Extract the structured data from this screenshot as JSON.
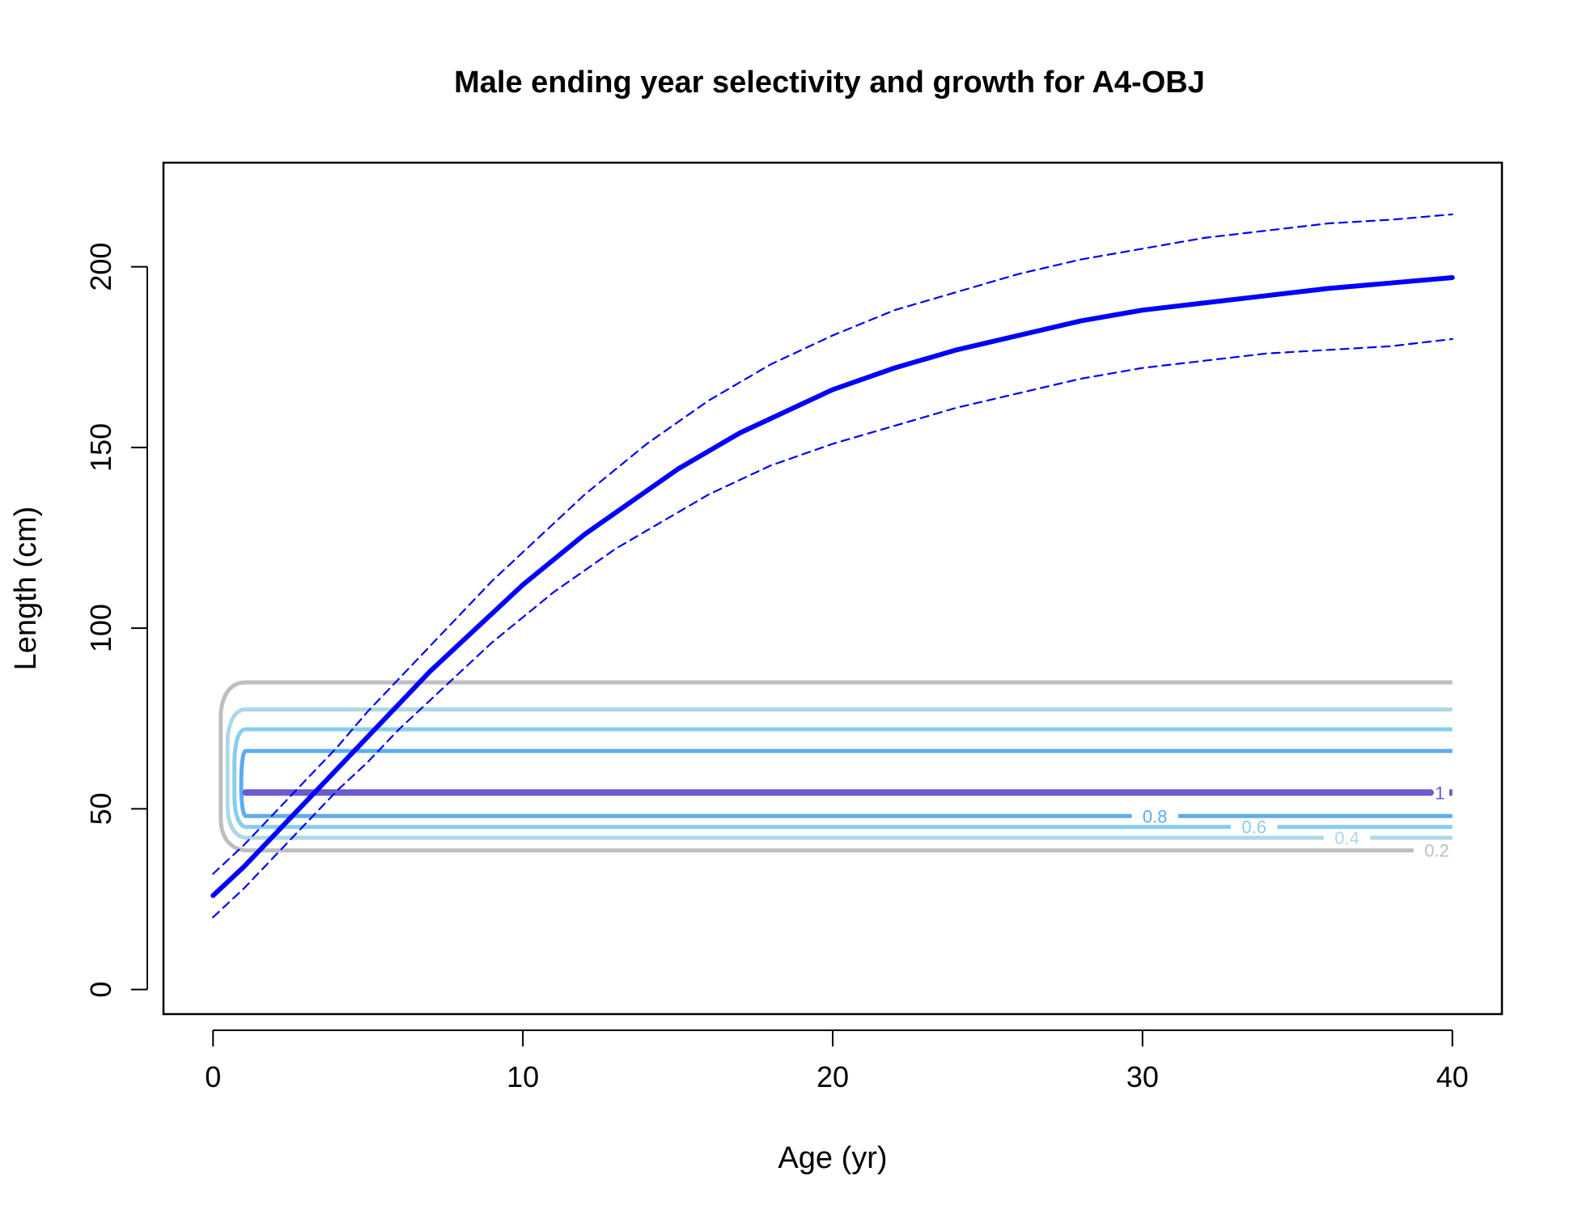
{
  "chart_data": {
    "type": "line",
    "title": "Male ending year selectivity and growth for A4-OBJ",
    "xlabel": "Age (yr)",
    "ylabel": "Length (cm)",
    "xlim": [
      -1.6,
      41.6
    ],
    "ylim": [
      -6.8,
      228.8
    ],
    "x_ticks": [
      0,
      10,
      20,
      30,
      40
    ],
    "y_ticks": [
      0,
      50,
      100,
      150,
      200
    ],
    "series": [
      {
        "role": "mean-length",
        "color": "#0000ff",
        "style": "solid-thick",
        "x": [
          0,
          1,
          2,
          3,
          4,
          5,
          6,
          7,
          8,
          9,
          10,
          11,
          12,
          13,
          14,
          15,
          16,
          17,
          18,
          19,
          20,
          22,
          24,
          26,
          28,
          30,
          32,
          34,
          36,
          38,
          40
        ],
        "y": [
          26,
          34,
          43,
          52,
          61,
          70,
          79,
          88,
          96,
          104,
          112,
          119,
          126,
          132,
          138,
          144,
          149,
          154,
          158,
          162,
          166,
          172,
          177,
          181,
          185,
          188,
          190,
          192,
          194,
          195.5,
          197
        ]
      },
      {
        "role": "upper-interval",
        "color": "#0000ff",
        "style": "dashed",
        "x": [
          0,
          1,
          2,
          3,
          4,
          5,
          6,
          7,
          8,
          9,
          10,
          11,
          12,
          13,
          14,
          15,
          16,
          17,
          18,
          19,
          20,
          22,
          24,
          26,
          28,
          30,
          32,
          34,
          36,
          38,
          40
        ],
        "y": [
          32,
          40,
          49,
          58,
          67,
          77,
          86,
          95,
          104,
          113,
          121,
          129,
          137,
          144,
          151,
          157,
          163,
          168,
          173,
          177,
          181,
          188,
          193,
          198,
          202,
          205,
          208,
          210,
          212,
          213,
          214.5
        ]
      },
      {
        "role": "lower-interval",
        "color": "#0000ff",
        "style": "dashed",
        "x": [
          0,
          1,
          2,
          3,
          4,
          5,
          6,
          7,
          8,
          9,
          10,
          11,
          12,
          13,
          14,
          15,
          16,
          17,
          18,
          19,
          20,
          22,
          24,
          26,
          28,
          30,
          32,
          34,
          36,
          38,
          40
        ],
        "y": [
          20,
          28,
          37,
          46,
          55,
          63,
          72,
          80,
          88,
          96,
          103,
          110,
          116,
          122,
          127,
          132,
          137,
          141,
          145,
          148,
          151,
          156,
          161,
          165,
          169,
          172,
          174,
          176,
          177,
          178,
          180
        ]
      }
    ],
    "contours": [
      {
        "level": "0.2",
        "label": "0.2",
        "color": "#bebebe",
        "y_low": 38.5,
        "y_high": 85,
        "label_x": 39.5
      },
      {
        "level": "0.4",
        "label": "0.4",
        "color": "#add8e6",
        "y_low": 42,
        "y_high": 77.5,
        "label_x": 36.6
      },
      {
        "level": "0.6",
        "label": "0.6",
        "color": "#87ceeb",
        "y_low": 45,
        "y_high": 72,
        "label_x": 33.6
      },
      {
        "level": "0.8",
        "label": "0.8",
        "color": "#5cacee",
        "y_low": 48,
        "y_high": 66,
        "label_x": 30.4
      },
      {
        "level": "1",
        "label": "1",
        "color": "#6a5acd",
        "y_low": 54.5,
        "y_high": 54.5,
        "label_x": 39.6
      }
    ]
  }
}
